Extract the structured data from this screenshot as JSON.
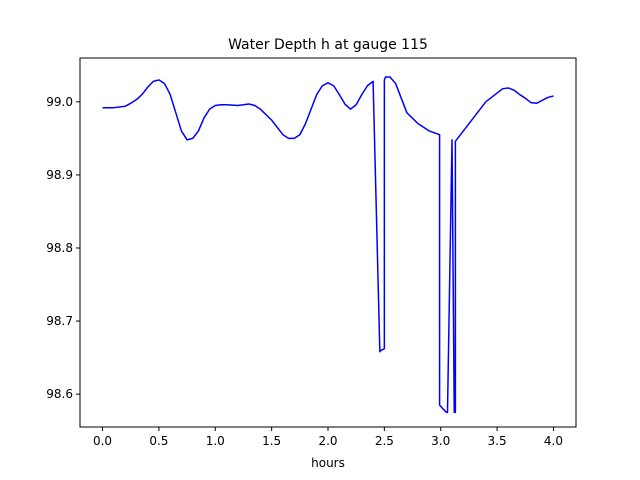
{
  "chart_data": {
    "type": "line",
    "title": "Water Depth h at gauge 115",
    "xlabel": "hours",
    "ylabel": "",
    "xlim": [
      -0.2,
      4.2
    ],
    "ylim": [
      98.555,
      99.06
    ],
    "xticks": [
      0.0,
      0.5,
      1.0,
      1.5,
      2.0,
      2.5,
      3.0,
      3.5,
      4.0
    ],
    "xtick_labels": [
      "0.0",
      "0.5",
      "1.0",
      "1.5",
      "2.0",
      "2.5",
      "3.0",
      "3.5",
      "4.0"
    ],
    "yticks": [
      98.6,
      98.7,
      98.8,
      98.9,
      99.0
    ],
    "ytick_labels": [
      "98.6",
      "98.7",
      "98.8",
      "98.9",
      "99.0"
    ],
    "grid": false,
    "series": [
      {
        "color": "#0000ff",
        "x": [
          0.0,
          0.1,
          0.2,
          0.25,
          0.3,
          0.35,
          0.4,
          0.45,
          0.5,
          0.55,
          0.6,
          0.65,
          0.7,
          0.75,
          0.8,
          0.85,
          0.9,
          0.95,
          1.0,
          1.05,
          1.1,
          1.2,
          1.3,
          1.35,
          1.4,
          1.5,
          1.6,
          1.65,
          1.7,
          1.75,
          1.8,
          1.85,
          1.9,
          1.95,
          2.0,
          2.05,
          2.1,
          2.15,
          2.2,
          2.25,
          2.3,
          2.35,
          2.4,
          2.46,
          2.47,
          2.5,
          2.5,
          2.51,
          2.55,
          2.6,
          2.65,
          2.7,
          2.8,
          2.9,
          2.99,
          2.99,
          3.05,
          3.06,
          3.1,
          3.1,
          3.12,
          3.13,
          3.13,
          3.2,
          3.3,
          3.4,
          3.5,
          3.55,
          3.6,
          3.65,
          3.7,
          3.75,
          3.8,
          3.85,
          3.9,
          3.95,
          4.0
        ],
        "y": [
          98.992,
          98.992,
          98.994,
          98.998,
          99.003,
          99.01,
          99.02,
          99.028,
          99.03,
          99.025,
          99.01,
          98.985,
          98.96,
          98.948,
          98.95,
          98.96,
          98.978,
          98.99,
          98.995,
          98.996,
          98.996,
          98.995,
          98.997,
          98.995,
          98.99,
          98.975,
          98.955,
          98.95,
          98.95,
          98.955,
          98.97,
          98.99,
          99.01,
          99.022,
          99.026,
          99.022,
          99.01,
          98.997,
          98.99,
          98.996,
          99.01,
          99.022,
          99.028,
          98.658,
          98.66,
          98.662,
          99.03,
          99.034,
          99.034,
          99.025,
          99.005,
          98.985,
          98.97,
          98.96,
          98.955,
          98.585,
          98.575,
          98.575,
          98.948,
          98.947,
          98.575,
          98.575,
          98.946,
          98.96,
          98.98,
          99.0,
          99.012,
          99.018,
          99.019,
          99.016,
          99.01,
          99.005,
          98.999,
          98.998,
          99.002,
          99.006,
          99.008
        ]
      }
    ]
  }
}
